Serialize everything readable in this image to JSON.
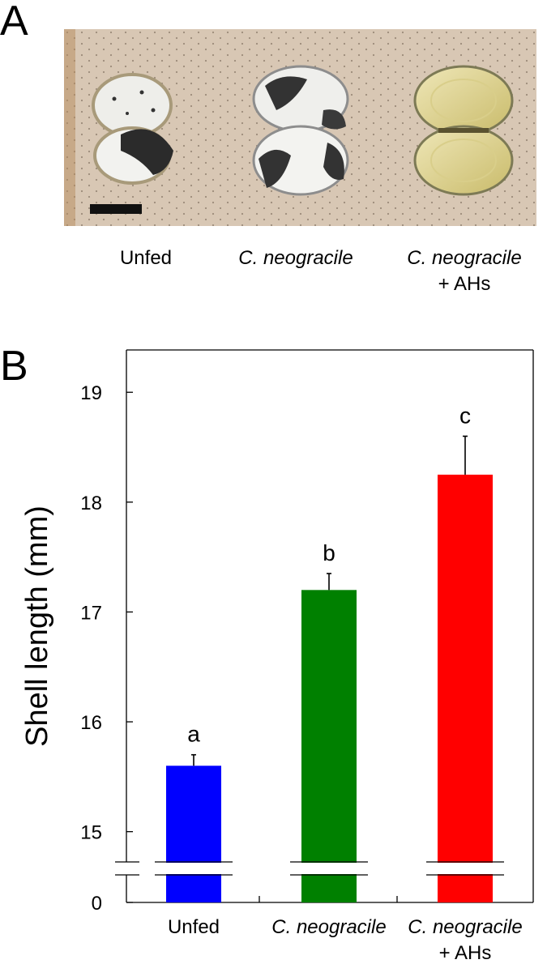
{
  "panel_a": {
    "letter": "A",
    "captions": [
      "Unfed",
      "C. neogracile",
      "C. neogracile",
      "+ AHs"
    ]
  },
  "panel_b": {
    "letter": "B"
  },
  "chart_data": {
    "type": "bar",
    "ylabel": "Shell length (mm)",
    "categories": [
      "Unfed",
      "C. neogracile",
      "C. neogracile + AHs"
    ],
    "category_lines": [
      [
        "Unfed"
      ],
      [
        "C. neogracile"
      ],
      [
        "C. neogracile",
        "+ AHs"
      ]
    ],
    "values": [
      15.6,
      17.2,
      18.25
    ],
    "errors": [
      0.1,
      0.15,
      0.35
    ],
    "significance": [
      "a",
      "b",
      "c"
    ],
    "bar_colors": [
      "#0000ff",
      "#008000",
      "#ff0000"
    ],
    "y_ticks": [
      15,
      16,
      17,
      18,
      19
    ],
    "y_break_label": "0",
    "ylim": [
      14.4,
      19.4
    ],
    "axis_break": true,
    "grid": false
  }
}
